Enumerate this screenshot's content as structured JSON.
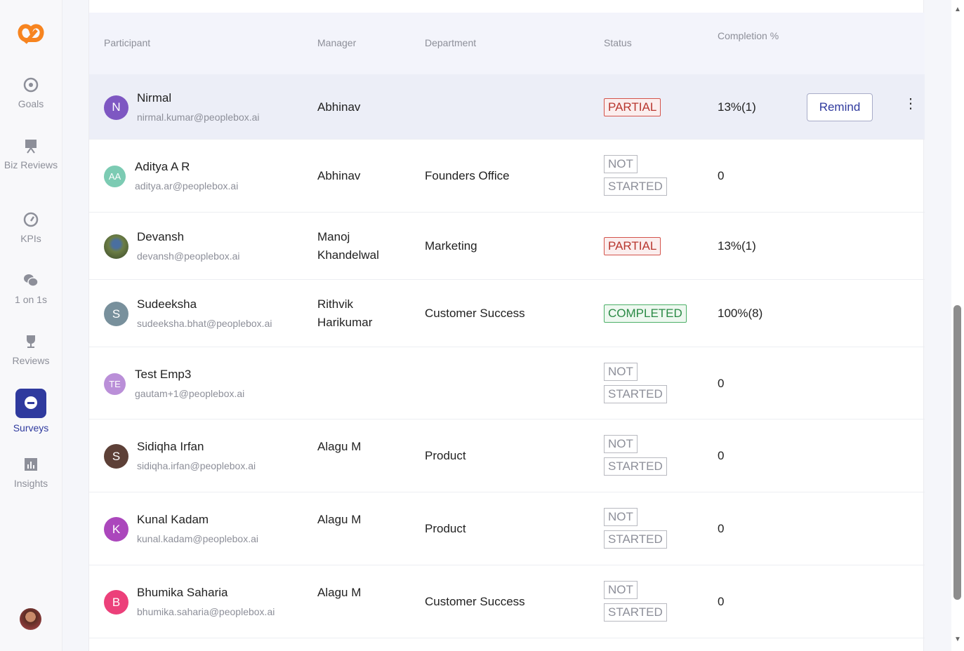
{
  "sidebar": {
    "items": [
      {
        "label": "Goals",
        "icon": "target-icon"
      },
      {
        "label": "Biz Reviews",
        "icon": "presentation-icon"
      },
      {
        "label": "KPIs",
        "icon": "gauge-icon"
      },
      {
        "label": "1 on 1s",
        "icon": "chat-icon"
      },
      {
        "label": "Reviews",
        "icon": "trophy-icon"
      },
      {
        "label": "Surveys",
        "icon": "survey-icon",
        "active": true
      },
      {
        "label": "Insights",
        "icon": "chart-icon"
      }
    ]
  },
  "table": {
    "headers": {
      "participant": "Participant",
      "manager": "Manager",
      "department": "Department",
      "status": "Status",
      "completion": "Completion %"
    },
    "remind_label": "Remind",
    "rows": [
      {
        "initials": "N",
        "color": "#7e57c2",
        "name": "Nirmal",
        "email": "nirmal.kumar@peoplebox.ai",
        "manager": "Abhinav",
        "department": "",
        "status": "PARTIAL",
        "completion": "13%(1)"
      },
      {
        "initials": "AA",
        "color": "#7ccbb3",
        "name": "Aditya A R",
        "email": "aditya.ar@peoplebox.ai",
        "manager": "Abhinav",
        "department": "Founders Office",
        "status": "NOT STARTED",
        "completion": "0"
      },
      {
        "initials": "",
        "color": "#5b6b3a",
        "photo": true,
        "name": "Devansh",
        "email": "devansh@peoplebox.ai",
        "manager": "Manoj Khandelwal",
        "department": "Marketing",
        "status": "PARTIAL",
        "completion": "13%(1)"
      },
      {
        "initials": "S",
        "color": "#78909c",
        "name": "Sudeeksha",
        "email": "sudeeksha.bhat@peoplebox.ai",
        "manager": "Rithvik Harikumar",
        "department": "Customer Success",
        "status": "COMPLETED",
        "completion": "100%(8)"
      },
      {
        "initials": "TE",
        "color": "#ba8fd8",
        "name": "Test Emp3",
        "email": "gautam+1@peoplebox.ai",
        "manager": "",
        "department": "",
        "status": "NOT STARTED",
        "completion": "0"
      },
      {
        "initials": "S",
        "color": "#5d4037",
        "name": "Sidiqha Irfan",
        "email": "sidiqha.irfan@peoplebox.ai",
        "manager": "Alagu M",
        "department": "Product",
        "status": "NOT STARTED",
        "completion": "0"
      },
      {
        "initials": "K",
        "color": "#ab47bc",
        "name": "Kunal Kadam",
        "email": "kunal.kadam@peoplebox.ai",
        "manager": "Alagu M",
        "department": "Product",
        "status": "NOT STARTED",
        "completion": "0"
      },
      {
        "initials": "B",
        "color": "#ec407a",
        "name": "Bhumika Saharia",
        "email": "bhumika.saharia@peoplebox.ai",
        "manager": "Alagu M",
        "department": "Customer Success",
        "status": "NOT STARTED",
        "completion": "0"
      }
    ]
  }
}
